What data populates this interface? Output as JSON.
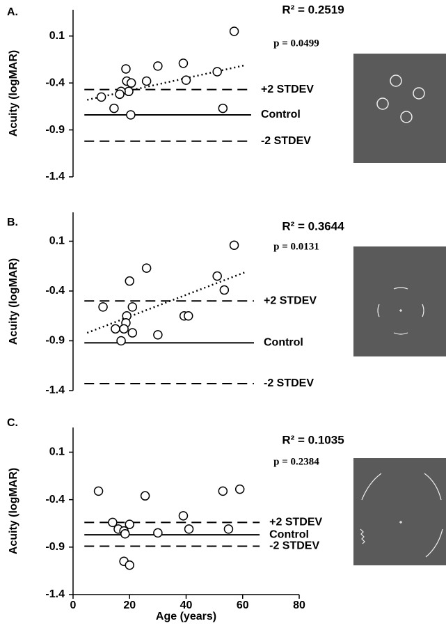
{
  "chart_data": [
    {
      "type": "scatter",
      "panel_label": "A.",
      "ylabel": "Acuity (logMAR)",
      "xlim": [
        0,
        80
      ],
      "ylim": [
        -1.4,
        0.38
      ],
      "yticks": [
        0.1,
        -0.4,
        -0.9,
        -1.4
      ],
      "x": [
        57,
        39,
        30,
        18.7,
        51,
        19,
        20.6,
        26,
        40,
        19.7,
        17,
        16.5,
        10,
        14.5,
        20.4,
        53
      ],
      "y": [
        0.15,
        -0.19,
        -0.22,
        -0.25,
        -0.28,
        -0.38,
        -0.4,
        -0.38,
        -0.37,
        -0.49,
        -0.49,
        -0.52,
        -0.55,
        -0.67,
        -0.74,
        -0.67
      ],
      "reference_lines": [
        {
          "name": "+2 STDEV",
          "value": -0.47,
          "x": [
            4,
            63
          ],
          "style": "dashed"
        },
        {
          "name": "Control",
          "value": -0.74,
          "x": [
            4,
            63
          ],
          "style": "solid"
        },
        {
          "name": "-2 STDEV",
          "value": -1.02,
          "x": [
            4,
            63
          ],
          "style": "dashed"
        }
      ],
      "trendline": {
        "x": [
          5,
          61
        ],
        "y": [
          -0.58,
          -0.21
        ]
      },
      "r_squared_label": "R² = 0.2519",
      "p_label": "p = 0.0499"
    },
    {
      "type": "scatter",
      "panel_label": "B.",
      "ylabel": "Acuity (logMAR)",
      "xlim": [
        0,
        80
      ],
      "ylim": [
        -1.4,
        0.39
      ],
      "yticks": [
        0.1,
        -0.4,
        -0.9,
        -1.4
      ],
      "x": [
        57,
        26,
        51,
        53.5,
        20,
        10.6,
        21,
        19,
        39.3,
        40.8,
        18.7,
        15,
        18,
        21,
        30,
        17
      ],
      "y": [
        0.06,
        -0.17,
        -0.25,
        -0.39,
        -0.3,
        -0.56,
        -0.56,
        -0.65,
        -0.65,
        -0.65,
        -0.72,
        -0.78,
        -0.78,
        -0.82,
        -0.84,
        -0.9
      ],
      "reference_lines": [
        {
          "name": "+2 STDEV",
          "value": -0.5,
          "x": [
            4,
            64
          ],
          "style": "dashed"
        },
        {
          "name": "Control",
          "value": -0.92,
          "x": [
            4,
            64
          ],
          "style": "solid"
        },
        {
          "name": "-2 STDEV",
          "value": -1.33,
          "x": [
            4,
            64
          ],
          "style": "dashed"
        }
      ],
      "trendline": {
        "x": [
          5,
          61
        ],
        "y": [
          -0.82,
          -0.21
        ]
      },
      "r_squared_label": "R² = 0.3644",
      "p_label": "p = 0.0131"
    },
    {
      "type": "scatter",
      "panel_label": "C.",
      "ylabel": "Acuity (logMAR)",
      "xlabel": "Age (years)",
      "xlim": [
        0,
        80
      ],
      "xticks": [
        0,
        20,
        40,
        60,
        80
      ],
      "ylim": [
        -1.4,
        0.36
      ],
      "yticks": [
        0.1,
        -0.4,
        -0.9,
        -1.4
      ],
      "x": [
        25.5,
        9,
        53,
        59,
        39,
        14,
        20,
        16,
        18,
        18.4,
        41,
        55,
        30,
        18,
        20
      ],
      "y": [
        -0.36,
        -0.31,
        -0.31,
        -0.29,
        -0.57,
        -0.64,
        -0.66,
        -0.71,
        -0.73,
        -0.76,
        -0.71,
        -0.71,
        -0.75,
        -1.05,
        -1.09
      ],
      "reference_lines": [
        {
          "name": "+2 STDEV",
          "value": -0.64,
          "x": [
            4,
            66
          ],
          "style": "dashed"
        },
        {
          "name": "Control",
          "value": -0.77,
          "x": [
            4,
            66
          ],
          "style": "solid"
        },
        {
          "name": "-2 STDEV",
          "value": -0.89,
          "x": [
            4,
            66
          ],
          "style": "dashed"
        }
      ],
      "r_squared_label": "R² = 0.1035",
      "p_label": "p = 0.2384"
    }
  ]
}
